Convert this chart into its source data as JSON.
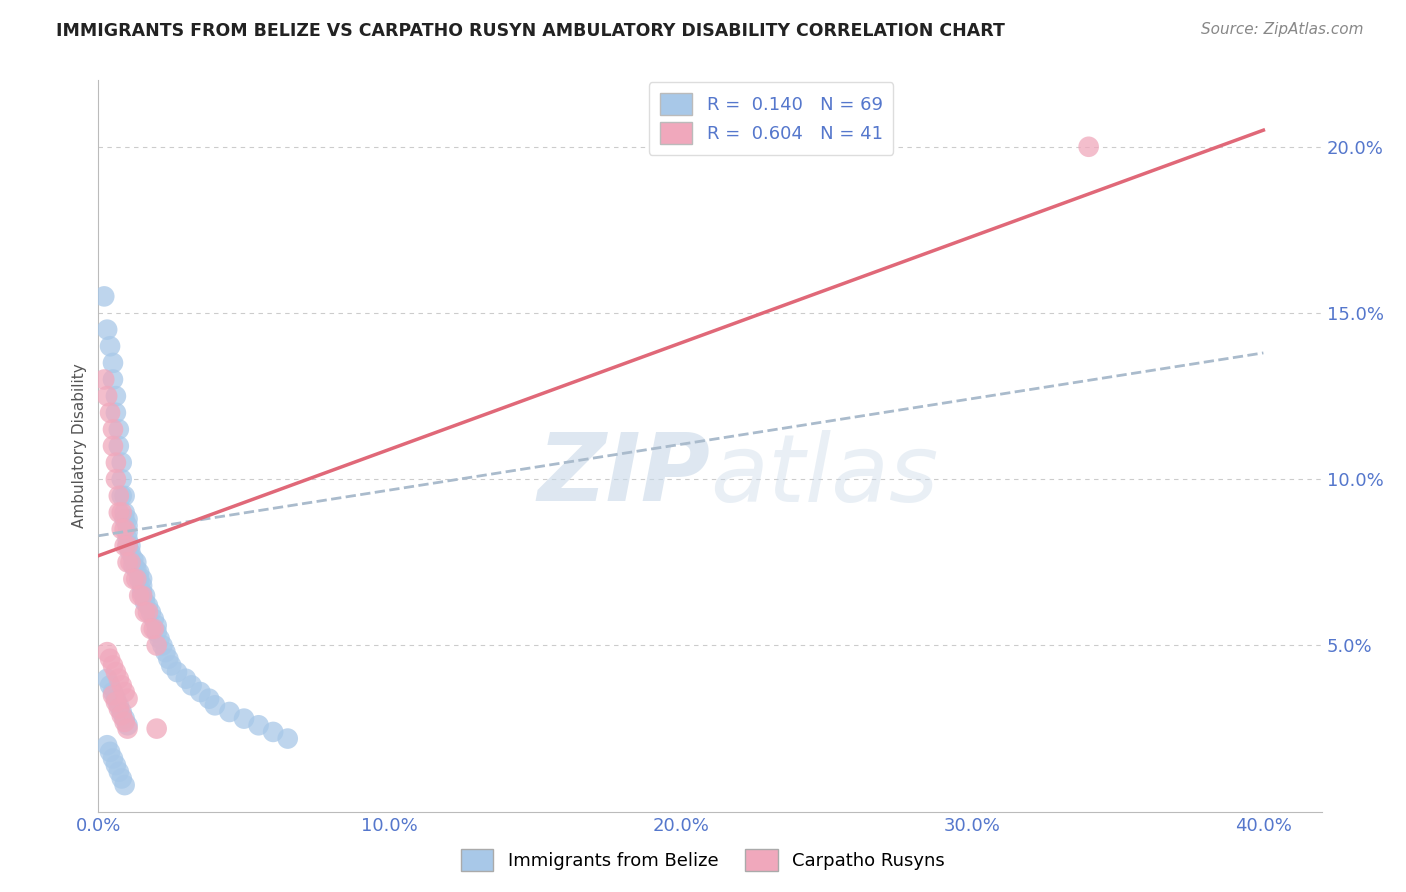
{
  "title": "IMMIGRANTS FROM BELIZE VS CARPATHO RUSYN AMBULATORY DISABILITY CORRELATION CHART",
  "source": "Source: ZipAtlas.com",
  "ylabel": "Ambulatory Disability",
  "watermark_zip": "ZIP",
  "watermark_atlas": "atlas",
  "legend": {
    "belize_R": "0.140",
    "belize_N": "69",
    "rusyn_R": "0.604",
    "rusyn_N": "41"
  },
  "xlim": [
    0.0,
    0.42
  ],
  "ylim": [
    0.0,
    0.22
  ],
  "xticks": [
    0.0,
    0.1,
    0.2,
    0.3,
    0.4
  ],
  "yticks": [
    0.05,
    0.1,
    0.15,
    0.2
  ],
  "ytick_labels": [
    "5.0%",
    "10.0%",
    "15.0%",
    "20.0%"
  ],
  "xtick_labels": [
    "0.0%",
    "10.0%",
    "20.0%",
    "30.0%",
    "40.0%"
  ],
  "color_belize": "#a8c8e8",
  "color_rusyn": "#f0a8bc",
  "line_belize_color": "#aabbcc",
  "line_rusyn_color": "#e06878",
  "grid_color": "#cccccc",
  "tick_color": "#5577cc",
  "belize_scatter_x": [
    0.002,
    0.003,
    0.004,
    0.005,
    0.005,
    0.006,
    0.006,
    0.007,
    0.007,
    0.008,
    0.008,
    0.008,
    0.009,
    0.009,
    0.009,
    0.01,
    0.01,
    0.01,
    0.01,
    0.01,
    0.011,
    0.011,
    0.012,
    0.012,
    0.013,
    0.013,
    0.014,
    0.014,
    0.015,
    0.015,
    0.015,
    0.016,
    0.016,
    0.017,
    0.018,
    0.019,
    0.02,
    0.02,
    0.021,
    0.022,
    0.023,
    0.024,
    0.025,
    0.027,
    0.03,
    0.032,
    0.035,
    0.038,
    0.04,
    0.045,
    0.05,
    0.055,
    0.06,
    0.065,
    0.003,
    0.004,
    0.005,
    0.006,
    0.007,
    0.008,
    0.009,
    0.01,
    0.003,
    0.004,
    0.005,
    0.006,
    0.007,
    0.008,
    0.009
  ],
  "belize_scatter_y": [
    0.155,
    0.145,
    0.14,
    0.135,
    0.13,
    0.125,
    0.12,
    0.115,
    0.11,
    0.105,
    0.1,
    0.095,
    0.095,
    0.09,
    0.088,
    0.088,
    0.086,
    0.084,
    0.082,
    0.08,
    0.08,
    0.078,
    0.076,
    0.074,
    0.075,
    0.073,
    0.072,
    0.07,
    0.07,
    0.068,
    0.066,
    0.065,
    0.063,
    0.062,
    0.06,
    0.058,
    0.056,
    0.054,
    0.052,
    0.05,
    0.048,
    0.046,
    0.044,
    0.042,
    0.04,
    0.038,
    0.036,
    0.034,
    0.032,
    0.03,
    0.028,
    0.026,
    0.024,
    0.022,
    0.04,
    0.038,
    0.036,
    0.034,
    0.032,
    0.03,
    0.028,
    0.026,
    0.02,
    0.018,
    0.016,
    0.014,
    0.012,
    0.01,
    0.008
  ],
  "rusyn_scatter_x": [
    0.002,
    0.003,
    0.004,
    0.005,
    0.005,
    0.006,
    0.006,
    0.007,
    0.007,
    0.008,
    0.008,
    0.009,
    0.009,
    0.01,
    0.01,
    0.011,
    0.012,
    0.013,
    0.014,
    0.015,
    0.016,
    0.017,
    0.018,
    0.019,
    0.02,
    0.003,
    0.004,
    0.005,
    0.006,
    0.007,
    0.008,
    0.009,
    0.01,
    0.005,
    0.006,
    0.007,
    0.008,
    0.009,
    0.01,
    0.34,
    0.02
  ],
  "rusyn_scatter_y": [
    0.13,
    0.125,
    0.12,
    0.115,
    0.11,
    0.105,
    0.1,
    0.095,
    0.09,
    0.09,
    0.085,
    0.085,
    0.08,
    0.08,
    0.075,
    0.075,
    0.07,
    0.07,
    0.065,
    0.065,
    0.06,
    0.06,
    0.055,
    0.055,
    0.05,
    0.048,
    0.046,
    0.044,
    0.042,
    0.04,
    0.038,
    0.036,
    0.034,
    0.035,
    0.033,
    0.031,
    0.029,
    0.027,
    0.025,
    0.2,
    0.025
  ],
  "belize_line_x": [
    0.0,
    0.4
  ],
  "belize_line_y": [
    0.083,
    0.138
  ],
  "rusyn_line_x": [
    0.0,
    0.4
  ],
  "rusyn_line_y": [
    0.077,
    0.205
  ]
}
